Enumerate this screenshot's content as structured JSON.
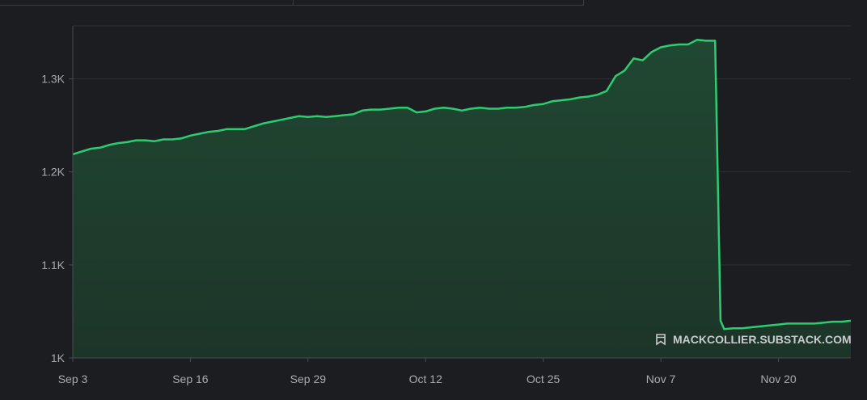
{
  "chart_data": {
    "type": "area",
    "title": "",
    "xlabel": "",
    "ylabel": "",
    "x_tick_labels": [
      "Sep 3",
      "Sep 16",
      "Sep 29",
      "Oct 12",
      "Oct 25",
      "Nov 7",
      "Nov 20"
    ],
    "y_tick_labels": [
      "1K",
      "1.1K",
      "1.2K",
      "1.3K"
    ],
    "y_ticks": [
      1000,
      1100,
      1200,
      1300
    ],
    "ylim": [
      1000,
      1357
    ],
    "x_day_range": [
      0,
      86
    ],
    "grid": true,
    "colors": {
      "line": "#2ecc71",
      "fill": "#1f3d2d",
      "background": "#1c1d20",
      "grid": "#2e3034"
    },
    "series": [
      {
        "x": [
          0,
          1,
          2,
          3,
          4,
          5,
          6,
          7,
          8,
          9,
          10,
          11,
          12,
          13,
          14,
          15,
          16,
          17,
          18,
          19,
          20,
          21,
          22,
          23,
          24,
          25,
          26,
          27,
          28,
          29,
          30,
          31,
          32,
          33,
          34,
          35,
          36,
          37,
          38,
          39,
          40,
          41,
          42,
          43,
          44,
          45,
          46,
          47,
          48,
          49,
          50,
          51,
          52,
          53,
          54,
          55,
          56,
          57,
          58,
          59,
          60,
          61,
          62,
          63,
          64,
          65,
          66,
          67,
          68,
          69,
          70,
          71,
          71.6,
          72,
          73,
          74,
          75,
          76,
          77,
          78,
          79,
          80,
          81,
          82,
          83,
          84,
          85,
          86
        ],
        "values": [
          1219,
          1222,
          1225,
          1226,
          1229,
          1231,
          1232,
          1234,
          1234,
          1233,
          1235,
          1235,
          1236,
          1239,
          1241,
          1243,
          1244,
          1246,
          1246,
          1246,
          1249,
          1252,
          1254,
          1256,
          1258,
          1260,
          1259,
          1260,
          1259,
          1260,
          1261,
          1262,
          1266,
          1267,
          1267,
          1268,
          1269,
          1269,
          1264,
          1265,
          1268,
          1269,
          1268,
          1266,
          1268,
          1269,
          1268,
          1268,
          1269,
          1269,
          1270,
          1272,
          1273,
          1276,
          1277,
          1278,
          1280,
          1281,
          1283,
          1287,
          1303,
          1309,
          1322,
          1320,
          1329,
          1334,
          1336,
          1337,
          1337,
          1342,
          1341,
          1341,
          1040,
          1031,
          1032,
          1032,
          1033,
          1034,
          1035,
          1036,
          1037,
          1037,
          1037,
          1037,
          1038,
          1039,
          1039,
          1040
        ]
      }
    ]
  },
  "watermark": {
    "icon": "bookmark-icon",
    "text": "MACKCOLLIER.SUBSTACK.COM"
  }
}
